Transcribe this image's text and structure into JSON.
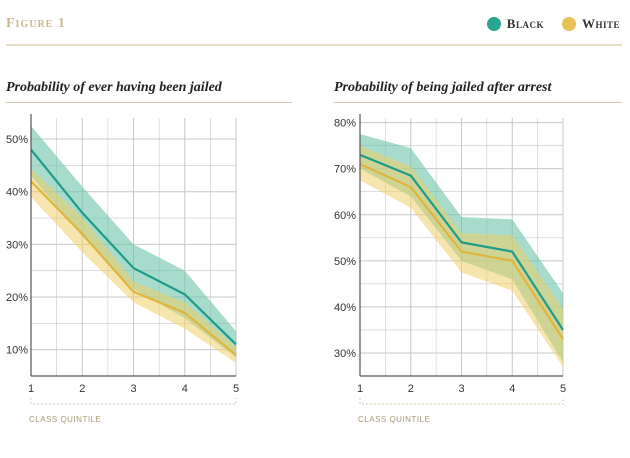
{
  "figure_label": "Figure 1",
  "legend": [
    {
      "name": "Black",
      "color": "#2aa592"
    },
    {
      "name": "White",
      "color": "#e8c253"
    }
  ],
  "colors": {
    "black_line": "#1e9c8a",
    "black_band": "#6cc3a8",
    "white_line": "#e0b53e",
    "white_band": "#efcf68",
    "grid": "#c8c8c8",
    "axis": "#555555"
  },
  "chart_data": [
    {
      "type": "line",
      "title": "Probability of ever having been jailed",
      "xlabel": "Class Quintile",
      "x": [
        1,
        2,
        3,
        4,
        5
      ],
      "ylim": [
        5,
        54
      ],
      "ytick_values": [
        10,
        20,
        30,
        40,
        50
      ],
      "ytick_labels": [
        "10%",
        "20%",
        "30%",
        "40%",
        "50%"
      ],
      "series": [
        {
          "name": "Black",
          "values": [
            48,
            36,
            25.5,
            20.5,
            11
          ],
          "lower": [
            43,
            31.5,
            21.5,
            16,
            8.5
          ],
          "upper": [
            52.5,
            41,
            30,
            25,
            13.5
          ]
        },
        {
          "name": "White",
          "values": [
            42,
            32,
            21,
            17,
            9
          ],
          "lower": [
            39,
            28.5,
            19,
            14,
            7.5
          ],
          "upper": [
            44.5,
            35,
            23,
            19,
            10.5
          ]
        }
      ]
    },
    {
      "type": "line",
      "title": "Probability of being jailed after arrest",
      "xlabel": "Class Quintile",
      "x": [
        1,
        2,
        3,
        4,
        5
      ],
      "ylim": [
        25,
        81
      ],
      "ytick_values": [
        30,
        40,
        50,
        60,
        70,
        80
      ],
      "ytick_labels": [
        "30%",
        "40%",
        "50%",
        "60%",
        "70%",
        "80%"
      ],
      "series": [
        {
          "name": "Black",
          "values": [
            73,
            68.5,
            54,
            52,
            35
          ],
          "lower": [
            70,
            64,
            50,
            46,
            28
          ],
          "upper": [
            77.5,
            74.5,
            59.5,
            59,
            43
          ]
        },
        {
          "name": "White",
          "values": [
            71,
            66,
            52,
            50,
            33
          ],
          "lower": [
            67.5,
            61.5,
            47.5,
            43.5,
            27
          ],
          "upper": [
            75,
            70.5,
            56,
            55.5,
            39.5
          ]
        }
      ]
    }
  ]
}
